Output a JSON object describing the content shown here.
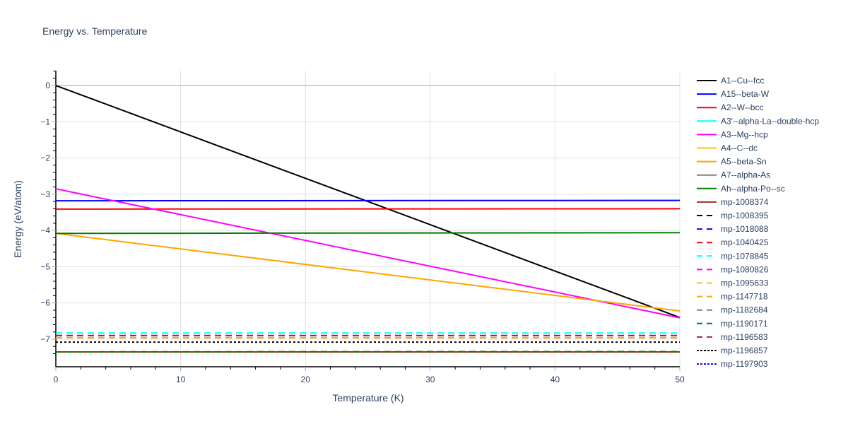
{
  "chart_data": {
    "type": "line",
    "title": "Energy vs. Temperature",
    "xlabel": "Temperature (K)",
    "ylabel": "Energy (eV/atom)",
    "xlim": [
      0,
      50
    ],
    "ylim": [
      -7.76,
      0.41
    ],
    "xticks": [
      0,
      10,
      20,
      30,
      40,
      50
    ],
    "yticks": [
      0,
      -1,
      -2,
      -3,
      -4,
      -5,
      -6,
      -7
    ],
    "ytick_labels": [
      "0",
      "−1",
      "−2",
      "−3",
      "−4",
      "−5",
      "−6",
      "−7"
    ],
    "grid": true,
    "legend_position": "right",
    "x": [
      0,
      50
    ],
    "series": [
      {
        "name": "A1--Cu--fcc",
        "color": "#000000",
        "dash": "solid",
        "values": [
          0,
          -6.4
        ]
      },
      {
        "name": "A15--beta-W",
        "color": "#0000ff",
        "dash": "solid",
        "values": [
          -3.18,
          -3.17
        ]
      },
      {
        "name": "A2--W--bcc",
        "color": "#ff0000",
        "dash": "solid",
        "values": [
          -3.41,
          -3.4
        ]
      },
      {
        "name": "A3'--alpha-La--double-hcp",
        "color": "#00ffff",
        "dash": "solid",
        "values": [
          null,
          null
        ]
      },
      {
        "name": "A3--Mg--hcp",
        "color": "#ff00ff",
        "dash": "solid",
        "values": [
          -2.85,
          -6.41
        ]
      },
      {
        "name": "A4--C--dc",
        "color": "#f5c518",
        "dash": "solid",
        "values": [
          null,
          null
        ]
      },
      {
        "name": "A5--beta-Sn",
        "color": "#ffa500",
        "dash": "solid",
        "values": [
          -4.08,
          -6.22
        ]
      },
      {
        "name": "A7--alpha-As",
        "color": "#808080",
        "dash": "solid",
        "values": [
          null,
          null
        ]
      },
      {
        "name": "Ah--alpha-Po--sc",
        "color": "#008000",
        "dash": "solid",
        "values": [
          -4.08,
          -4.06
        ]
      },
      {
        "name": "mp-1008374",
        "color": "#a52a2a",
        "dash": "solid",
        "values": [
          -7.35,
          -7.35
        ]
      },
      {
        "name": "mp-1008395",
        "color": "#000000",
        "dash": "dash",
        "values": [
          null,
          null
        ]
      },
      {
        "name": "mp-1018088",
        "color": "#0000ff",
        "dash": "dash",
        "values": [
          null,
          null
        ]
      },
      {
        "name": "mp-1040425",
        "color": "#ff0000",
        "dash": "dash",
        "values": [
          -7.35,
          -7.34
        ]
      },
      {
        "name": "mp-1078845",
        "color": "#00ffff",
        "dash": "dash",
        "values": [
          -6.83,
          -6.83
        ]
      },
      {
        "name": "mp-1080826",
        "color": "#ff00ff",
        "dash": "dash",
        "values": [
          -6.9,
          -6.9
        ]
      },
      {
        "name": "mp-1095633",
        "color": "#f5c518",
        "dash": "dash",
        "values": [
          -6.96,
          -6.96
        ]
      },
      {
        "name": "mp-1147718",
        "color": "#ffa500",
        "dash": "dash",
        "values": [
          -6.96,
          -6.96
        ]
      },
      {
        "name": "mp-1182684",
        "color": "#808080",
        "dash": "dash",
        "values": [
          null,
          null
        ]
      },
      {
        "name": "mp-1190171",
        "color": "#008000",
        "dash": "dash",
        "values": [
          -7.35,
          -7.34
        ]
      },
      {
        "name": "mp-1196583",
        "color": "#a52a2a",
        "dash": "dash",
        "values": [
          -6.9,
          -6.9
        ]
      },
      {
        "name": "mp-1196857",
        "color": "#000000",
        "dash": "dot",
        "values": [
          -7.08,
          -7.08
        ]
      },
      {
        "name": "mp-1197903",
        "color": "#0000ff",
        "dash": "dot",
        "values": [
          null,
          null
        ]
      }
    ]
  },
  "title": "Energy vs. Temperature"
}
